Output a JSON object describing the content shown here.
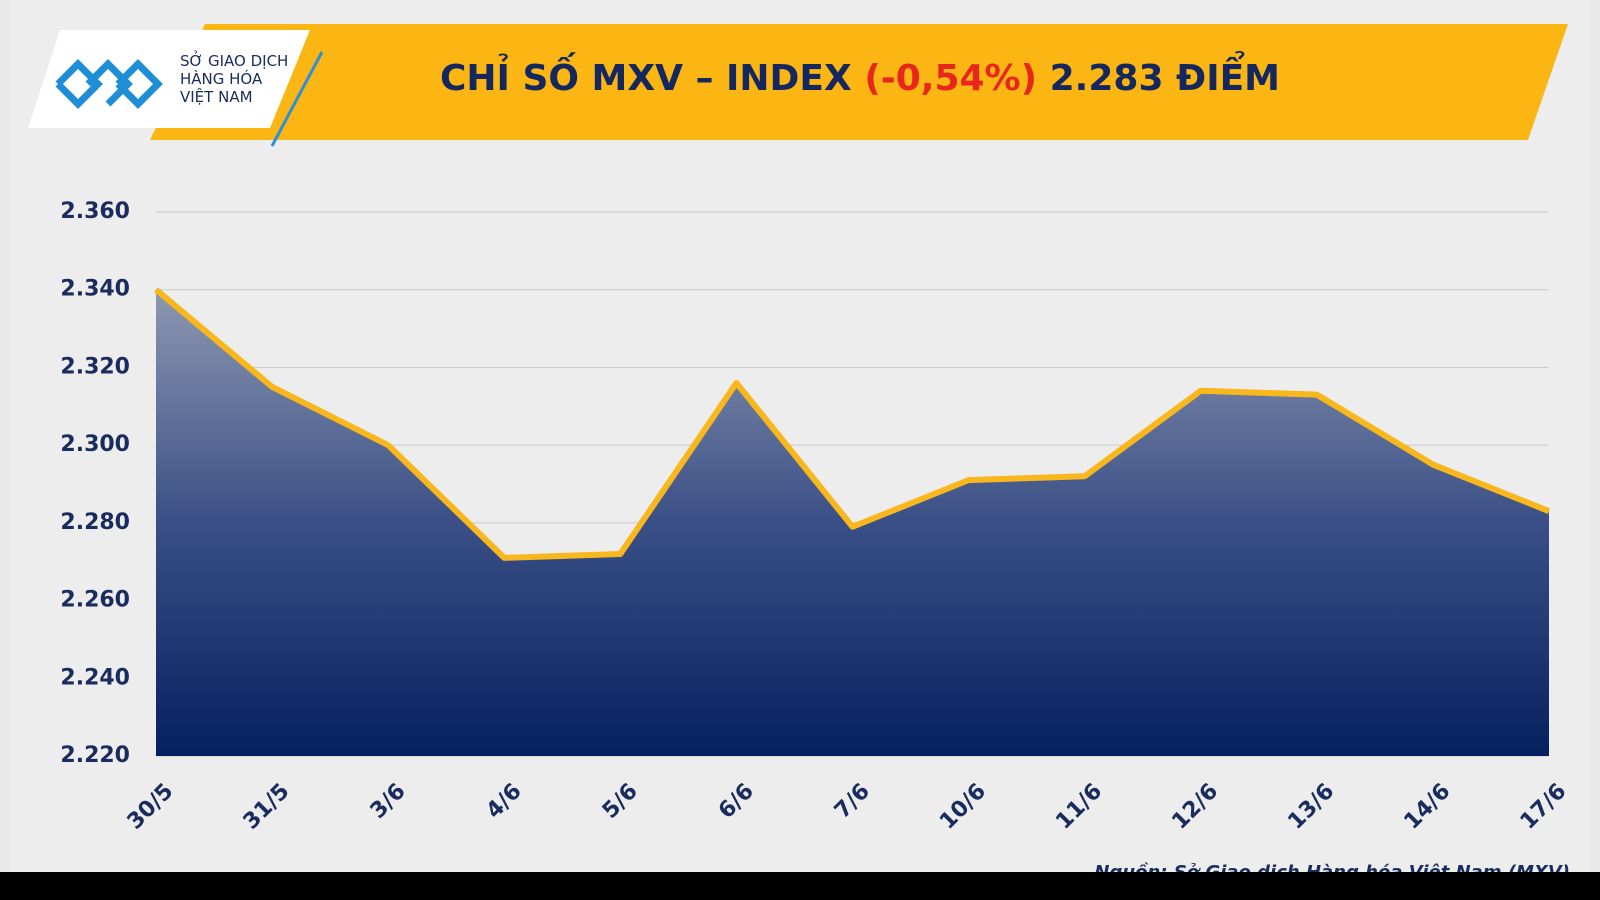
{
  "logo": {
    "lines": [
      "SỞ GIAO DỊCH",
      "HÀNG HÓA",
      "VIỆT NAM"
    ]
  },
  "chart_data": {
    "type": "area",
    "title": {
      "main": "CHỈ SỐ MXV – INDEX",
      "change": "(-0,54%)",
      "value": "2.283 ĐIỂM"
    },
    "categories": [
      "30/5",
      "31/5",
      "3/6",
      "4/6",
      "5/6",
      "6/6",
      "7/6",
      "10/6",
      "11/6",
      "12/6",
      "13/6",
      "14/6",
      "17/6"
    ],
    "values": [
      2340,
      2315,
      2300,
      2271,
      2272,
      2316,
      2279,
      2291,
      2292,
      2314,
      2313,
      2295,
      2283
    ],
    "color": "#f7b71d",
    "ylim": [
      2220,
      2360
    ],
    "yticks": [
      {
        "value": 2220,
        "label": "2.220"
      },
      {
        "value": 2240,
        "label": "2.240"
      },
      {
        "value": 2260,
        "label": "2.260"
      },
      {
        "value": 2280,
        "label": "2.280"
      },
      {
        "value": 2300,
        "label": "2.300"
      },
      {
        "value": 2320,
        "label": "2.320"
      },
      {
        "value": 2340,
        "label": "2.340"
      },
      {
        "value": 2360,
        "label": "2.360"
      }
    ],
    "grid": true,
    "source": "Nguồn: Sở Giao dịch Hàng hóa Việt Nam (MXV)"
  }
}
